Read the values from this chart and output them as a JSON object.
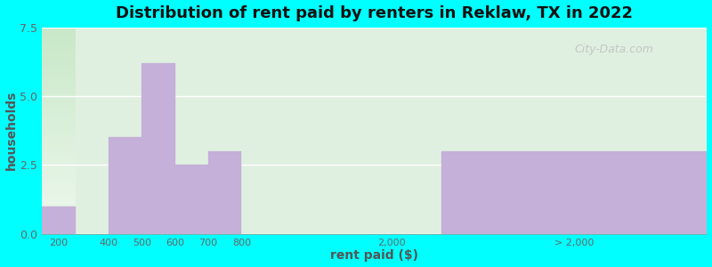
{
  "title": "Distribution of rent paid by renters in Reklaw, TX in 2022",
  "xlabel": "rent paid ($)",
  "ylabel": "households",
  "ylim": [
    0,
    7.5
  ],
  "yticks": [
    0,
    2.5,
    5,
    7.5
  ],
  "background_color": "#00FFFF",
  "bar_color": "#c4b0d8",
  "bar_edge_color": "#c4b0d8",
  "title_fontsize": 13,
  "axis_label_fontsize": 10,
  "values": [
    1,
    3.5,
    6.2,
    2.5,
    3,
    0,
    3
  ],
  "bar_lefts": [
    0,
    2,
    3,
    4,
    5,
    9,
    12
  ],
  "bar_rights": [
    1,
    3,
    4,
    5,
    6,
    12,
    20
  ],
  "xtick_positions": [
    0.5,
    2,
    3,
    4,
    5,
    6,
    10.5,
    16
  ],
  "xtick_labels": [
    "200",
    "400",
    "500",
    "600",
    "700",
    "800",
    "2,000",
    "> 2,000"
  ],
  "watermark": "City-Data.com"
}
